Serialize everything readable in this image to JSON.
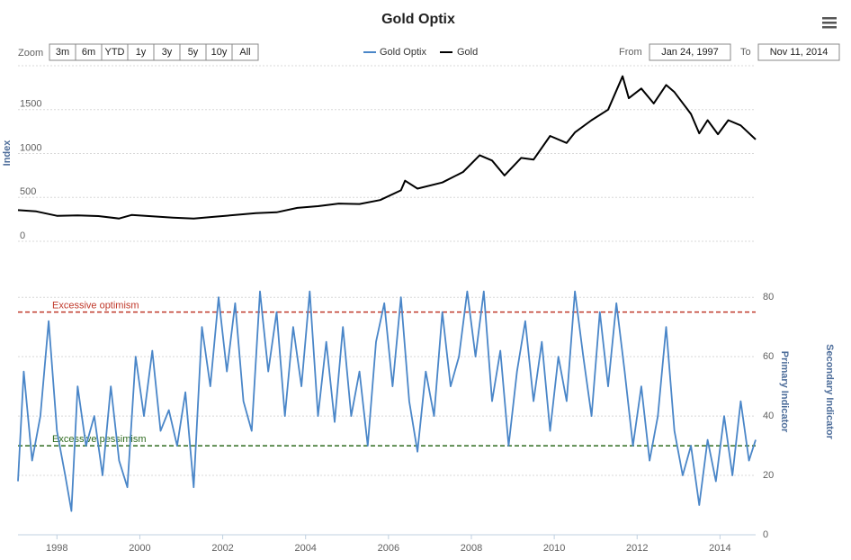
{
  "range_selector": {
    "zoom_label": "Zoom",
    "buttons": [
      "3m",
      "6m",
      "YTD",
      "1y",
      "3y",
      "5y",
      "10y",
      "All"
    ],
    "from_label": "From",
    "from": "Jan 24, 1997",
    "to_label": "To",
    "to": "Nov 11, 2014"
  },
  "chart_data": [
    {
      "type": "line",
      "title": "Gold Optix",
      "ylabel": "Index",
      "ylim": [
        0,
        2000
      ],
      "yticks": [
        0,
        500,
        1000,
        1500
      ],
      "xlim": [
        1997.06,
        2014.86
      ],
      "grid": true,
      "series": [
        {
          "name": "Gold",
          "color": "#000000",
          "x": [
            1997.06,
            1997.5,
            1998,
            1998.5,
            1999,
            1999.5,
            1999.8,
            2000.3,
            2000.8,
            2001.3,
            2001.8,
            2002.3,
            2002.8,
            2003.3,
            2003.8,
            2004.3,
            2004.8,
            2005.3,
            2005.8,
            2006.3,
            2006.4,
            2006.7,
            2007.3,
            2007.8,
            2008.2,
            2008.5,
            2008.8,
            2009.2,
            2009.5,
            2009.9,
            2010.3,
            2010.5,
            2010.9,
            2011.3,
            2011.65,
            2011.8,
            2012.1,
            2012.4,
            2012.7,
            2012.9,
            2013.3,
            2013.5,
            2013.7,
            2013.95,
            2014.2,
            2014.5,
            2014.86
          ],
          "values": [
            355,
            340,
            290,
            295,
            287,
            260,
            300,
            285,
            270,
            260,
            280,
            300,
            320,
            330,
            380,
            400,
            430,
            425,
            470,
            580,
            690,
            600,
            670,
            790,
            980,
            920,
            750,
            950,
            930,
            1200,
            1120,
            1240,
            1380,
            1500,
            1880,
            1630,
            1740,
            1570,
            1780,
            1700,
            1450,
            1230,
            1380,
            1220,
            1380,
            1320,
            1160
          ]
        }
      ]
    },
    {
      "type": "line",
      "ylabel": "Primary Indicator",
      "y2label": "Secondary Indicator",
      "ylim": [
        0,
        84
      ],
      "yticks": [
        0,
        20,
        40,
        60,
        80
      ],
      "xlim": [
        1997.06,
        2014.86
      ],
      "xticks": [
        1998,
        2000,
        2002,
        2004,
        2006,
        2008,
        2010,
        2012,
        2014
      ],
      "grid": true,
      "annotations": [
        {
          "text": "Excessive optimism",
          "value": 75,
          "color": "#c0392b"
        },
        {
          "text": "Excessive pessimism",
          "value": 30,
          "color": "#2e6b1f"
        }
      ],
      "series": [
        {
          "name": "Gold Optix",
          "color": "#4a86c8",
          "x": [
            1997.06,
            1997.2,
            1997.4,
            1997.6,
            1997.8,
            1998.0,
            1998.2,
            1998.35,
            1998.5,
            1998.7,
            1998.9,
            1999.1,
            1999.3,
            1999.5,
            1999.7,
            1999.9,
            2000.1,
            2000.3,
            2000.5,
            2000.7,
            2000.9,
            2001.1,
            2001.3,
            2001.5,
            2001.7,
            2001.9,
            2002.1,
            2002.3,
            2002.5,
            2002.7,
            2002.9,
            2003.1,
            2003.3,
            2003.5,
            2003.7,
            2003.9,
            2004.1,
            2004.3,
            2004.5,
            2004.7,
            2004.9,
            2005.1,
            2005.3,
            2005.5,
            2005.7,
            2005.9,
            2006.1,
            2006.3,
            2006.5,
            2006.7,
            2006.9,
            2007.1,
            2007.3,
            2007.5,
            2007.7,
            2007.9,
            2008.1,
            2008.3,
            2008.5,
            2008.7,
            2008.9,
            2009.1,
            2009.3,
            2009.5,
            2009.7,
            2009.9,
            2010.1,
            2010.3,
            2010.5,
            2010.7,
            2010.9,
            2011.1,
            2011.3,
            2011.5,
            2011.7,
            2011.9,
            2012.1,
            2012.3,
            2012.5,
            2012.7,
            2012.9,
            2013.1,
            2013.3,
            2013.5,
            2013.7,
            2013.9,
            2014.1,
            2014.3,
            2014.5,
            2014.7,
            2014.86
          ],
          "values": [
            18,
            55,
            25,
            40,
            72,
            35,
            20,
            8,
            50,
            30,
            40,
            20,
            50,
            25,
            16,
            60,
            40,
            62,
            35,
            42,
            30,
            48,
            16,
            70,
            50,
            80,
            55,
            78,
            45,
            35,
            82,
            55,
            75,
            40,
            70,
            50,
            82,
            40,
            65,
            38,
            70,
            40,
            55,
            30,
            65,
            78,
            50,
            80,
            45,
            28,
            55,
            40,
            75,
            50,
            60,
            82,
            60,
            82,
            45,
            62,
            30,
            55,
            72,
            45,
            65,
            35,
            60,
            45,
            82,
            60,
            40,
            75,
            50,
            78,
            55,
            30,
            50,
            25,
            40,
            70,
            35,
            20,
            30,
            10,
            32,
            18,
            40,
            20,
            45,
            25,
            32
          ]
        }
      ]
    }
  ]
}
